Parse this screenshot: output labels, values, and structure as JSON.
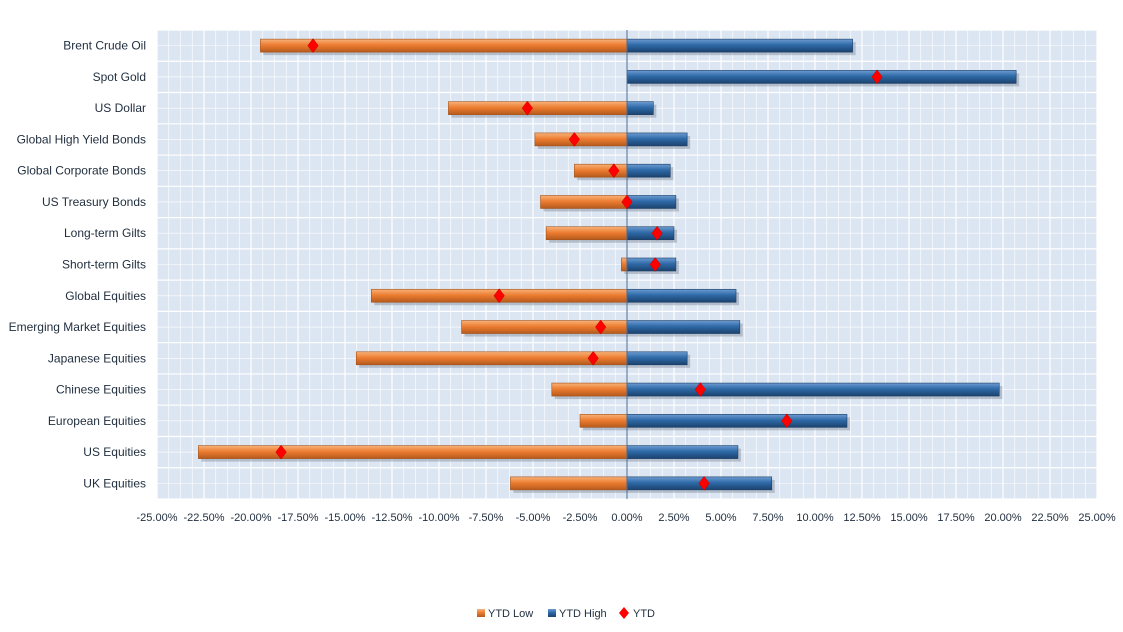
{
  "chart_data": {
    "type": "bar",
    "orientation": "horizontal",
    "categories": [
      "Brent Crude Oil",
      "Spot Gold",
      "US Dollar",
      "Global High Yield Bonds",
      "Global Corporate Bonds",
      "US Treasury Bonds",
      "Long-term Gilts",
      "Short-term Gilts",
      "Global Equities",
      "Emerging Market Equities",
      "Japanese Equities",
      "Chinese Equities",
      "European Equities",
      "US Equities",
      "UK Equities"
    ],
    "series": [
      {
        "name": "YTD Low",
        "mark": "bar",
        "color": "#ed7d31",
        "values": [
          -19.5,
          0.0,
          -9.5,
          -4.9,
          -2.8,
          -4.6,
          -4.3,
          -0.3,
          -13.6,
          -8.8,
          -14.4,
          -4.0,
          -2.5,
          -22.8,
          -6.2
        ]
      },
      {
        "name": "YTD High",
        "mark": "bar",
        "color": "#2e6aa7",
        "values": [
          12.0,
          20.7,
          1.4,
          3.2,
          2.3,
          2.6,
          2.5,
          2.6,
          5.8,
          6.0,
          3.2,
          19.8,
          11.7,
          5.9,
          7.7
        ]
      },
      {
        "name": "YTD",
        "mark": "diamond",
        "color": "#ff0000",
        "values": [
          -16.7,
          13.3,
          -5.3,
          -2.8,
          -0.7,
          0.0,
          1.6,
          1.5,
          -6.8,
          -1.4,
          -1.8,
          3.9,
          8.5,
          -18.4,
          4.1
        ]
      }
    ],
    "x_ticks": [
      "-25.00%",
      "-22.50%",
      "-20.00%",
      "-17.50%",
      "-15.00%",
      "-12.50%",
      "-10.00%",
      "-7.50%",
      "-5.00%",
      "-2.50%",
      "0.00%",
      "2.50%",
      "5.00%",
      "7.50%",
      "10.00%",
      "12.50%",
      "15.00%",
      "17.50%",
      "20.00%",
      "22.50%",
      "25.00%"
    ],
    "xlim": [
      -25,
      25
    ],
    "title": "",
    "xlabel": "",
    "ylabel": "",
    "grid": true,
    "legend_position": "bottom",
    "plot_background": "#dce6f2"
  }
}
